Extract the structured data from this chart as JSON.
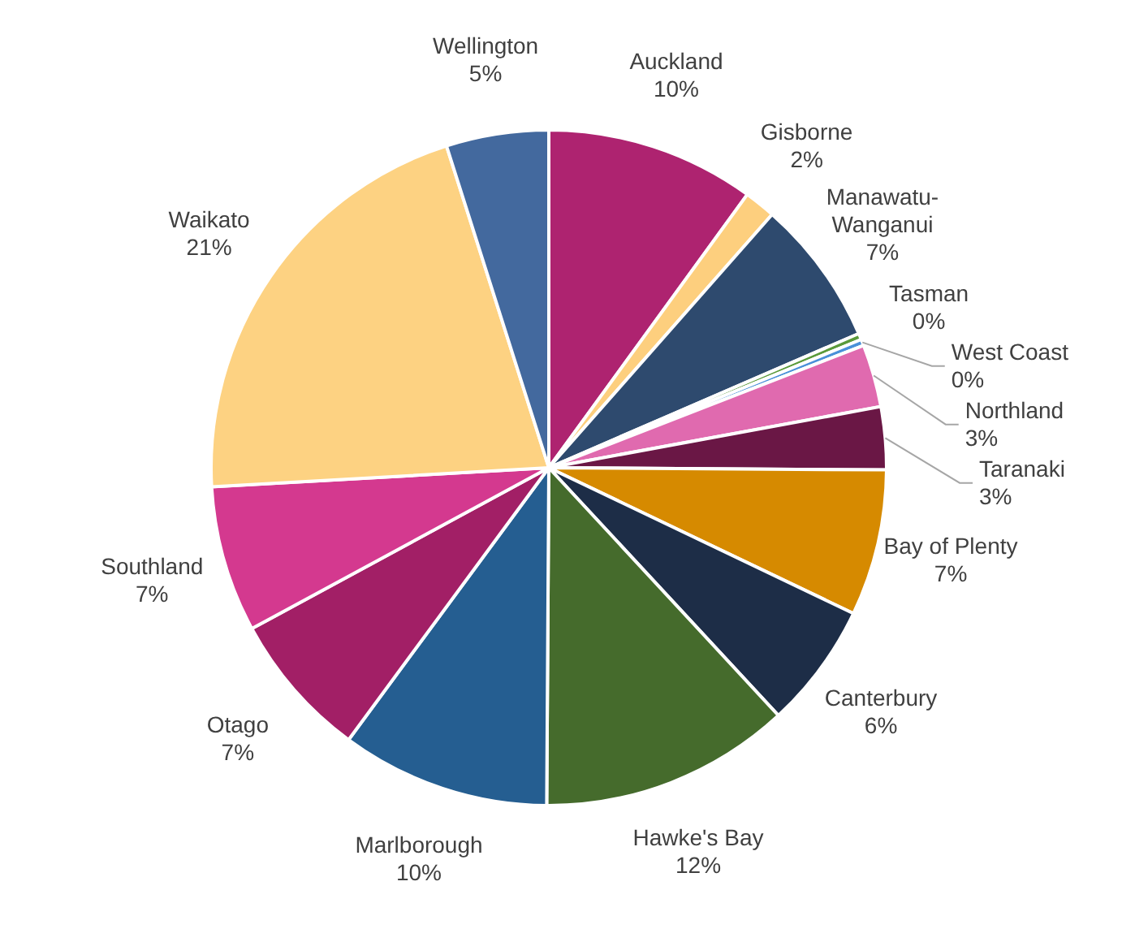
{
  "chart_data": {
    "type": "pie",
    "categories": [
      "Auckland",
      "Gisborne",
      "Manawatu-Wanganui",
      "Tasman",
      "West Coast",
      "Northland",
      "Taranaki",
      "Bay of Plenty",
      "Canterbury",
      "Hawke's Bay",
      "Marlborough",
      "Otago",
      "Southland",
      "Waikato",
      "Wellington"
    ],
    "values": [
      10,
      1.5,
      7,
      0.3,
      0.3,
      3,
      3,
      7,
      6,
      12,
      10,
      7,
      7,
      21,
      4.9
    ],
    "value_labels": [
      "10%",
      "2%",
      "7%",
      "0%",
      "0%",
      "3%",
      "3%",
      "7%",
      "6%",
      "12%",
      "10%",
      "7%",
      "7%",
      "21%",
      "5%"
    ],
    "colors": [
      "#ae2370",
      "#fdcf7e",
      "#2e4a6e",
      "#5a9a3a",
      "#4a90d9",
      "#e06aaf",
      "#6a1745",
      "#d68a00",
      "#1d2d47",
      "#456b2c",
      "#255e91",
      "#a21f66",
      "#d4398f",
      "#fdd282",
      "#43699e"
    ]
  }
}
